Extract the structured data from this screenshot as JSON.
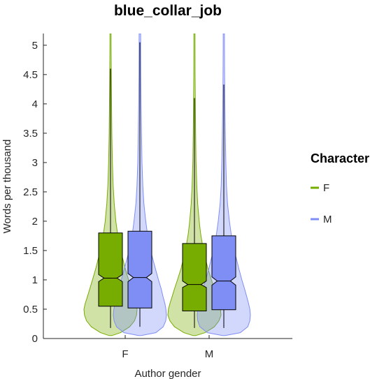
{
  "chart_data": {
    "type": "violin",
    "title": "blue_collar_job",
    "xlabel": "Author gender",
    "ylabel": "Words per thousand",
    "categories": [
      "F",
      "M"
    ],
    "ylim": [
      0,
      5.2
    ],
    "yticks": [
      "0",
      "0.5",
      "1",
      "1.5",
      "2",
      "2.5",
      "3",
      "3.5",
      "4",
      "4.5",
      "5"
    ],
    "legend": {
      "title": "Character",
      "position": "right",
      "entries": [
        "F",
        "M"
      ]
    },
    "series": [
      {
        "name": "F",
        "color": "#77ac00",
        "boxes": [
          {
            "category": "F",
            "whisker_low": 0.18,
            "q1": 0.55,
            "median": 1.03,
            "q3": 1.8,
            "whisker_high": 4.6,
            "notch_low": 0.97,
            "notch_high": 1.09,
            "density": [
              [
                0.05,
                0.05
              ],
              [
                0.1,
                0.38
              ],
              [
                0.2,
                0.72
              ],
              [
                0.3,
                0.9
              ],
              [
                0.4,
                0.98
              ],
              [
                0.5,
                1.0
              ],
              [
                0.6,
                0.95
              ],
              [
                0.7,
                0.88
              ],
              [
                0.85,
                0.78
              ],
              [
                1.0,
                0.68
              ],
              [
                1.2,
                0.55
              ],
              [
                1.4,
                0.44
              ],
              [
                1.6,
                0.34
              ],
              [
                1.8,
                0.26
              ],
              [
                2.0,
                0.2
              ],
              [
                2.3,
                0.14
              ],
              [
                2.6,
                0.1
              ],
              [
                3.0,
                0.07
              ],
              [
                3.5,
                0.05
              ],
              [
                4.0,
                0.04
              ],
              [
                4.5,
                0.03
              ],
              [
                5.0,
                0.02
              ],
              [
                5.2,
                0.02
              ]
            ]
          },
          {
            "category": "M",
            "whisker_low": 0.18,
            "q1": 0.47,
            "median": 0.92,
            "q3": 1.62,
            "whisker_high": 4.1,
            "notch_low": 0.87,
            "notch_high": 0.98,
            "density": [
              [
                0.05,
                0.05
              ],
              [
                0.1,
                0.4
              ],
              [
                0.2,
                0.75
              ],
              [
                0.3,
                0.92
              ],
              [
                0.4,
                1.0
              ],
              [
                0.5,
                0.98
              ],
              [
                0.6,
                0.92
              ],
              [
                0.7,
                0.85
              ],
              [
                0.85,
                0.75
              ],
              [
                1.0,
                0.64
              ],
              [
                1.2,
                0.5
              ],
              [
                1.4,
                0.4
              ],
              [
                1.6,
                0.3
              ],
              [
                1.8,
                0.23
              ],
              [
                2.0,
                0.18
              ],
              [
                2.3,
                0.12
              ],
              [
                2.6,
                0.09
              ],
              [
                3.0,
                0.06
              ],
              [
                3.5,
                0.045
              ],
              [
                4.0,
                0.035
              ],
              [
                4.5,
                0.025
              ],
              [
                5.0,
                0.02
              ],
              [
                5.2,
                0.02
              ]
            ]
          }
        ]
      },
      {
        "name": "M",
        "color": "#7f8ef5",
        "boxes": [
          {
            "category": "F",
            "whisker_low": 0.2,
            "q1": 0.52,
            "median": 1.04,
            "q3": 1.83,
            "whisker_high": 5.05,
            "notch_low": 0.97,
            "notch_high": 1.11,
            "density": [
              [
                0.05,
                0.05
              ],
              [
                0.1,
                0.6
              ],
              [
                0.2,
                0.88
              ],
              [
                0.3,
                0.97
              ],
              [
                0.4,
                1.0
              ],
              [
                0.5,
                0.98
              ],
              [
                0.6,
                0.94
              ],
              [
                0.7,
                0.88
              ],
              [
                0.85,
                0.8
              ],
              [
                1.0,
                0.7
              ],
              [
                1.2,
                0.58
              ],
              [
                1.4,
                0.46
              ],
              [
                1.6,
                0.36
              ],
              [
                1.8,
                0.28
              ],
              [
                2.0,
                0.22
              ],
              [
                2.3,
                0.15
              ],
              [
                2.6,
                0.11
              ],
              [
                3.0,
                0.08
              ],
              [
                3.5,
                0.06
              ],
              [
                4.0,
                0.045
              ],
              [
                4.5,
                0.035
              ],
              [
                5.0,
                0.03
              ],
              [
                5.2,
                0.03
              ]
            ]
          },
          {
            "category": "M",
            "whisker_low": 0.18,
            "q1": 0.49,
            "median": 0.98,
            "q3": 1.75,
            "whisker_high": 4.33,
            "notch_low": 0.91,
            "notch_high": 1.05,
            "density": [
              [
                0.05,
                0.05
              ],
              [
                0.1,
                0.62
              ],
              [
                0.2,
                0.9
              ],
              [
                0.3,
                0.98
              ],
              [
                0.4,
                1.0
              ],
              [
                0.5,
                0.98
              ],
              [
                0.6,
                0.93
              ],
              [
                0.7,
                0.87
              ],
              [
                0.85,
                0.78
              ],
              [
                1.0,
                0.68
              ],
              [
                1.2,
                0.56
              ],
              [
                1.4,
                0.45
              ],
              [
                1.6,
                0.35
              ],
              [
                1.8,
                0.27
              ],
              [
                2.0,
                0.21
              ],
              [
                2.3,
                0.14
              ],
              [
                2.6,
                0.1
              ],
              [
                3.0,
                0.075
              ],
              [
                3.5,
                0.055
              ],
              [
                4.0,
                0.04
              ],
              [
                4.5,
                0.03
              ],
              [
                5.0,
                0.025
              ],
              [
                5.2,
                0.025
              ]
            ]
          }
        ]
      }
    ],
    "grid": false
  }
}
